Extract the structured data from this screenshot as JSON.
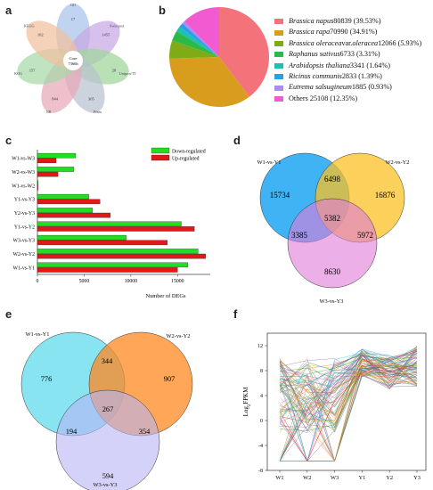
{
  "panels": {
    "a": "a",
    "b": "b",
    "c": "c",
    "d": "d",
    "e": "e",
    "f": "f"
  },
  "colors": {
    "down": "#22dd22",
    "up": "#e01818",
    "w1_circle": "#1ea6f2",
    "w2_circle": "#f9c224",
    "w3_circle": "#e07ad8",
    "e_w1": "#74dff0",
    "e_w2": "#ff8822",
    "e_w3": "#b8b4f4"
  },
  "chart_data": [
    {
      "type": "venn",
      "panel": "a",
      "core_label": "Core",
      "core_value": "7366h",
      "petals": [
        {
          "name": "GO",
          "value": "17",
          "color": "#a8c4ec"
        },
        {
          "name": "Swissprot",
          "value": "1455",
          "color": "#c7a8e3"
        },
        {
          "name": "Uniprot/TT",
          "value": "28",
          "color": "#9fd69a"
        },
        {
          "name": "Pfam",
          "value": "305",
          "color": "#b8c2d0"
        },
        {
          "name": "NR",
          "value": "844",
          "color": "#e8a8b8"
        },
        {
          "name": "KOG",
          "value": "157",
          "color": "#a8d8a8"
        },
        {
          "name": "KEGG",
          "value": "102",
          "color": "#f0c0a0"
        }
      ]
    },
    {
      "type": "pie",
      "panel": "b",
      "slices": [
        {
          "genus": "Brassica napus",
          "rest": " 80839 (39.53%)",
          "value": 80839,
          "pct": 39.53,
          "color": "#f4727a"
        },
        {
          "genus": "Brassica rapa",
          "rest": " 70990 (34.91%)",
          "value": 70990,
          "pct": 34.91,
          "color": "#d99d1e"
        },
        {
          "genus": "Brassica oleracea",
          "mid": " var. ",
          "genus2": "oleracea",
          "rest": " 12066 (5.93%)",
          "value": 12066,
          "pct": 5.93,
          "color": "#7fac16"
        },
        {
          "genus": "Raphanus sativus",
          "rest": " 6733 (3.31%)",
          "value": 6733,
          "pct": 3.31,
          "color": "#2bb94a"
        },
        {
          "genus": "Arabidopsis thaliana",
          "rest": " 3341 (1.64%)",
          "value": 3341,
          "pct": 1.64,
          "color": "#1fbfb6"
        },
        {
          "genus": "Ricinus communis",
          "rest": " 2833 (1.39%)",
          "value": 2833,
          "pct": 1.39,
          "color": "#2a9fe8"
        },
        {
          "genus": "Eutrema salsugineum",
          "rest": " 1885 (0.93%)",
          "value": 1885,
          "pct": 0.93,
          "color": "#a98cf0"
        },
        {
          "genus": "",
          "rest": "Others 25108 (12.35%)",
          "value": 25108,
          "pct": 12.35,
          "color": "#f25ad2"
        }
      ]
    },
    {
      "type": "bar",
      "panel": "c",
      "orientation": "horizontal",
      "categories": [
        "W1-vs-W3",
        "W2-vs-W3",
        "W1-vs-W2",
        "Y1-vs-Y3",
        "Y2-vs-Y3",
        "Y1-vs-Y2",
        "W3-vs-Y3",
        "W2-vs-Y2",
        "W1-vs-Y1"
      ],
      "series": [
        {
          "name": "Down-regulated",
          "values": [
            4100,
            3900,
            80,
            5500,
            5900,
            15400,
            9500,
            17200,
            16100
          ]
        },
        {
          "name": "Up-regulated",
          "values": [
            2000,
            2200,
            60,
            6700,
            7800,
            16800,
            13900,
            18000,
            15000
          ]
        }
      ],
      "xticks": [
        "0",
        "5000",
        "10000",
        "15000"
      ],
      "xlim": [
        0,
        18500
      ],
      "xlabel": "Number of DEGs"
    },
    {
      "type": "venn",
      "panel": "d",
      "sets": [
        "W1-vs-Y1",
        "W2-vs-Y2",
        "W3-vs-Y3"
      ],
      "regions": {
        "a_only": "15734",
        "b_only": "16876",
        "c_only": "8630",
        "ab": "6498",
        "ac": "3385",
        "bc": "5972",
        "abc": "5382"
      }
    },
    {
      "type": "venn",
      "panel": "e",
      "sets": [
        "W1-vs-Y1",
        "W2-vs-Y2",
        "W3-vs-Y3"
      ],
      "regions": {
        "a_only": "776",
        "b_only": "907",
        "c_only": "594",
        "ab": "344",
        "ac": "194",
        "bc": "354",
        "abc": "267"
      }
    },
    {
      "type": "line",
      "panel": "f",
      "x": [
        "W1",
        "W2",
        "W3",
        "Y1",
        "Y2",
        "Y3"
      ],
      "yticks": [
        "12",
        "8",
        "4",
        "0",
        "-4",
        "-8"
      ],
      "ylim": [
        -8,
        14
      ],
      "ylabel_pre": "Log",
      "ylabel_sub": "2",
      "ylabel_post": "FPKM",
      "series_count": 90
    }
  ]
}
